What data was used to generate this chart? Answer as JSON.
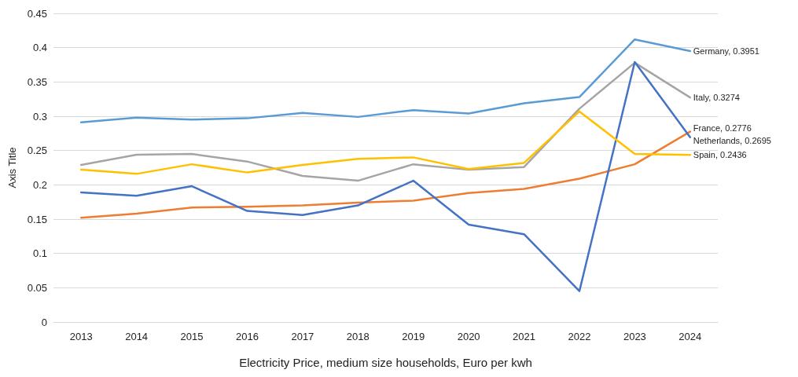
{
  "chart_data": {
    "type": "line",
    "xlabel": "Electricity Price, medium size households, Euro per kwh",
    "ylabel": "Axis Title",
    "categories": [
      "2013",
      "2014",
      "2015",
      "2016",
      "2017",
      "2018",
      "2019",
      "2020",
      "2021",
      "2022",
      "2023",
      "2024"
    ],
    "ylim": [
      0,
      0.45
    ],
    "yticks": [
      0,
      0.05,
      0.1,
      0.15,
      0.2,
      0.25,
      0.3,
      0.35,
      0.4,
      0.45
    ],
    "grid": "y",
    "marker": "none",
    "line_style": "solid",
    "series": [
      {
        "color": "#5b9bd5",
        "values": [
          0.291,
          0.298,
          0.295,
          0.297,
          0.305,
          0.299,
          0.309,
          0.304,
          0.319,
          0.328,
          0.412,
          0.3951
        ],
        "value_labels": [
          null,
          null,
          null,
          null,
          null,
          null,
          null,
          null,
          null,
          null,
          null,
          "Germany, 0.3951"
        ]
      },
      {
        "color": "#a5a5a5",
        "values": [
          0.229,
          0.244,
          0.245,
          0.234,
          0.213,
          0.206,
          0.23,
          0.222,
          0.226,
          0.311,
          0.378,
          0.3274
        ],
        "value_labels": [
          null,
          null,
          null,
          null,
          null,
          null,
          null,
          null,
          null,
          null,
          null,
          "Italy, 0.3274"
        ]
      },
      {
        "color": "#ed7d31",
        "values": [
          0.152,
          0.158,
          0.167,
          0.168,
          0.17,
          0.174,
          0.177,
          0.188,
          0.194,
          0.209,
          0.23,
          0.2776
        ],
        "value_labels": [
          null,
          null,
          null,
          null,
          null,
          null,
          null,
          null,
          null,
          null,
          null,
          "France, 0.2776"
        ]
      },
      {
        "color": "#4472c4",
        "values": [
          0.189,
          0.184,
          0.198,
          0.162,
          0.156,
          0.17,
          0.206,
          0.142,
          0.128,
          0.045,
          0.379,
          0.2695
        ],
        "value_labels": [
          null,
          null,
          null,
          null,
          null,
          null,
          null,
          null,
          null,
          null,
          null,
          "Netherlands, 0.2695"
        ]
      },
      {
        "color": "#ffc000",
        "values": [
          0.222,
          0.216,
          0.23,
          0.218,
          0.229,
          0.238,
          0.24,
          0.223,
          0.232,
          0.307,
          0.245,
          0.2436
        ],
        "value_labels": [
          null,
          null,
          null,
          null,
          null,
          null,
          null,
          null,
          null,
          null,
          null,
          "Spain, 0.2436"
        ]
      }
    ]
  }
}
